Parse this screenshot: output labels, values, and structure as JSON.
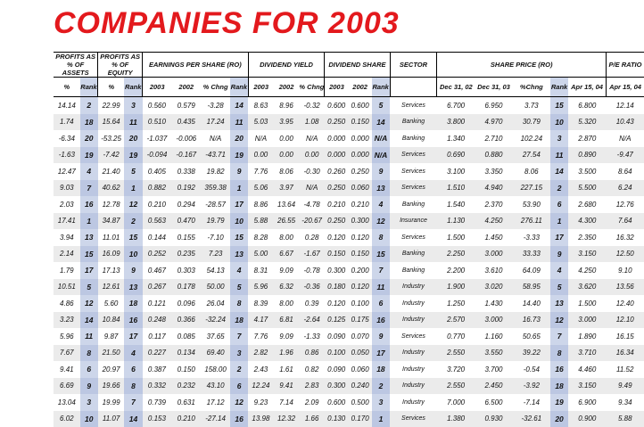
{
  "title": "COMPANIES FOR 2003",
  "headers": {
    "profit_assets": "PROFITS AS % OF ASSETS",
    "profit_equity": "PROFITS AS % OF EQUITY",
    "eps": "EARNINGS PER SHARE (RO)",
    "div_yield": "DIVIDEND YIELD",
    "div_share": "DIVIDEND SHARE",
    "sector": "SECTOR",
    "share_price": "SHARE PRICE (RO)",
    "pe_ratio": "P/E RATIO"
  },
  "subheaders": [
    "%",
    "Rank",
    "%",
    "Rank",
    "2003",
    "2002",
    "% Chng",
    "Rank",
    "2003",
    "2002",
    "% Chng",
    "2003",
    "2002",
    "Rank",
    "",
    "Dec 31, 02",
    "Dec 31, 03",
    "%Chng",
    "Rank",
    "Apr 15, 04",
    "Apr 15, 04"
  ],
  "rows": [
    [
      "14.14",
      "2",
      "22.99",
      "3",
      "0.560",
      "0.579",
      "-3.28",
      "14",
      "8.63",
      "8.96",
      "-0.32",
      "0.600",
      "0.600",
      "5",
      "Services",
      "6.700",
      "6.950",
      "3.73",
      "15",
      "6.800",
      "12.14"
    ],
    [
      "1.74",
      "18",
      "15.64",
      "11",
      "0.510",
      "0.435",
      "17.24",
      "11",
      "5.03",
      "3.95",
      "1.08",
      "0.250",
      "0.150",
      "14",
      "Banking",
      "3.800",
      "4.970",
      "30.79",
      "10",
      "5.320",
      "10.43"
    ],
    [
      "-6.34",
      "20",
      "-53.25",
      "20",
      "-1.037",
      "-0.006",
      "N/A",
      "20",
      "N/A",
      "0.00",
      "N/A",
      "0.000",
      "0.000",
      "N/A",
      "Banking",
      "1.340",
      "2.710",
      "102.24",
      "3",
      "2.870",
      "N/A"
    ],
    [
      "-1.63",
      "19",
      "-7.42",
      "19",
      "-0.094",
      "-0.167",
      "-43.71",
      "19",
      "0.00",
      "0.00",
      "0.00",
      "0.000",
      "0.000",
      "N/A",
      "Services",
      "0.690",
      "0.880",
      "27.54",
      "11",
      "0.890",
      "-9.47"
    ],
    [
      "12.47",
      "4",
      "21.40",
      "5",
      "0.405",
      "0.338",
      "19.82",
      "9",
      "7.76",
      "8.06",
      "-0.30",
      "0.260",
      "0.250",
      "9",
      "Services",
      "3.100",
      "3.350",
      "8.06",
      "14",
      "3.500",
      "8.64"
    ],
    [
      "9.03",
      "7",
      "40.62",
      "1",
      "0.882",
      "0.192",
      "359.38",
      "1",
      "5.06",
      "3.97",
      "N/A",
      "0.250",
      "0.060",
      "13",
      "Services",
      "1.510",
      "4.940",
      "227.15",
      "2",
      "5.500",
      "6.24"
    ],
    [
      "2.03",
      "16",
      "12.78",
      "12",
      "0.210",
      "0.294",
      "-28.57",
      "17",
      "8.86",
      "13.64",
      "-4.78",
      "0.210",
      "0.210",
      "4",
      "Banking",
      "1.540",
      "2.370",
      "53.90",
      "6",
      "2.680",
      "12.76"
    ],
    [
      "17.41",
      "1",
      "34.87",
      "2",
      "0.563",
      "0.470",
      "19.79",
      "10",
      "5.88",
      "26.55",
      "-20.67",
      "0.250",
      "0.300",
      "12",
      "Insurance",
      "1.130",
      "4.250",
      "276.11",
      "1",
      "4.300",
      "7.64"
    ],
    [
      "3.94",
      "13",
      "11.01",
      "15",
      "0.144",
      "0.155",
      "-7.10",
      "15",
      "8.28",
      "8.00",
      "0.28",
      "0.120",
      "0.120",
      "8",
      "Services",
      "1.500",
      "1.450",
      "-3.33",
      "17",
      "2.350",
      "16.32"
    ],
    [
      "2.14",
      "15",
      "16.09",
      "10",
      "0.252",
      "0.235",
      "7.23",
      "13",
      "5.00",
      "6.67",
      "-1.67",
      "0.150",
      "0.150",
      "15",
      "Banking",
      "2.250",
      "3.000",
      "33.33",
      "9",
      "3.150",
      "12.50"
    ],
    [
      "1.79",
      "17",
      "17.13",
      "9",
      "0.467",
      "0.303",
      "54.13",
      "4",
      "8.31",
      "9.09",
      "-0.78",
      "0.300",
      "0.200",
      "7",
      "Banking",
      "2.200",
      "3.610",
      "64.09",
      "4",
      "4.250",
      "9.10"
    ],
    [
      "10.51",
      "5",
      "12.61",
      "13",
      "0.267",
      "0.178",
      "50.00",
      "5",
      "5.96",
      "6.32",
      "-0.36",
      "0.180",
      "0.120",
      "11",
      "Industry",
      "1.900",
      "3.020",
      "58.95",
      "5",
      "3.620",
      "13.56"
    ],
    [
      "4.86",
      "12",
      "5.60",
      "18",
      "0.121",
      "0.096",
      "26.04",
      "8",
      "8.39",
      "8.00",
      "0.39",
      "0.120",
      "0.100",
      "6",
      "Industry",
      "1.250",
      "1.430",
      "14.40",
      "13",
      "1.500",
      "12.40"
    ],
    [
      "3.23",
      "14",
      "10.84",
      "16",
      "0.248",
      "0.366",
      "-32.24",
      "18",
      "4.17",
      "6.81",
      "-2.64",
      "0.125",
      "0.175",
      "16",
      "Industry",
      "2.570",
      "3.000",
      "16.73",
      "12",
      "3.000",
      "12.10"
    ],
    [
      "5.96",
      "11",
      "9.87",
      "17",
      "0.117",
      "0.085",
      "37.65",
      "7",
      "7.76",
      "9.09",
      "-1.33",
      "0.090",
      "0.070",
      "9",
      "Services",
      "0.770",
      "1.160",
      "50.65",
      "7",
      "1.890",
      "16.15"
    ],
    [
      "7.67",
      "8",
      "21.50",
      "4",
      "0.227",
      "0.134",
      "69.40",
      "3",
      "2.82",
      "1.96",
      "0.86",
      "0.100",
      "0.050",
      "17",
      "Industry",
      "2.550",
      "3.550",
      "39.22",
      "8",
      "3.710",
      "16.34"
    ],
    [
      "9.41",
      "6",
      "20.97",
      "6",
      "0.387",
      "0.150",
      "158.00",
      "2",
      "2.43",
      "1.61",
      "0.82",
      "0.090",
      "0.060",
      "18",
      "Industry",
      "3.720",
      "3.700",
      "-0.54",
      "16",
      "4.460",
      "11.52"
    ],
    [
      "6.69",
      "9",
      "19.66",
      "8",
      "0.332",
      "0.232",
      "43.10",
      "6",
      "12.24",
      "9.41",
      "2.83",
      "0.300",
      "0.240",
      "2",
      "Industry",
      "2.550",
      "2.450",
      "-3.92",
      "18",
      "3.150",
      "9.49"
    ],
    [
      "13.04",
      "3",
      "19.99",
      "7",
      "0.739",
      "0.631",
      "17.12",
      "12",
      "9.23",
      "7.14",
      "2.09",
      "0.600",
      "0.500",
      "3",
      "Industry",
      "7.000",
      "6.500",
      "-7.14",
      "19",
      "6.900",
      "9.34"
    ],
    [
      "6.02",
      "10",
      "11.07",
      "14",
      "0.153",
      "0.210",
      "-27.14",
      "16",
      "13.98",
      "12.32",
      "1.66",
      "0.130",
      "0.170",
      "1",
      "Services",
      "1.380",
      "0.930",
      "-32.61",
      "20",
      "0.900",
      "5.88"
    ]
  ]
}
